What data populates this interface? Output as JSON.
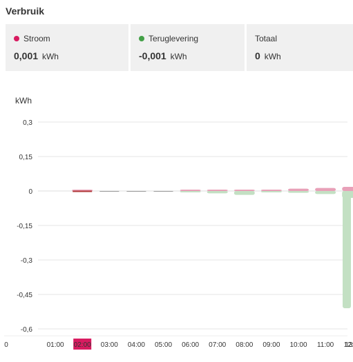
{
  "header": {
    "title": "Verbruik"
  },
  "cards": [
    {
      "label": "Stroom",
      "value": "0,001",
      "unit": "kWh",
      "dot_color": "#d81b60"
    },
    {
      "label": "Teruglevering",
      "value": "-0,001",
      "unit": "kWh",
      "dot_color": "#43a047"
    },
    {
      "label": "Totaal",
      "value": "0",
      "unit": "kWh"
    }
  ],
  "colors": {
    "stroom": "#e8a0b8",
    "teruglevering": "#c3e0c3",
    "accent": "#d81b60",
    "zero_line": "#b03a3a"
  },
  "chart_data": {
    "type": "bar",
    "ylabel": "kWh",
    "ylim": [
      -0.6,
      0.3
    ],
    "yticks": [
      {
        "value": 0.3,
        "label": "0,3"
      },
      {
        "value": 0.15,
        "label": "0,15"
      },
      {
        "value": 0,
        "label": "0"
      },
      {
        "value": -0.15,
        "label": "-0,15"
      },
      {
        "value": -0.3,
        "label": "-0,3"
      },
      {
        "value": -0.45,
        "label": "-0,45"
      },
      {
        "value": -0.6,
        "label": "-0,6"
      }
    ],
    "x_ticks": [
      "0",
      "01:00",
      "02:00",
      "03:00",
      "04:00",
      "05:00",
      "06:00",
      "07:00",
      "08:00",
      "09:00",
      "10:00",
      "11:00",
      "12:00",
      "13"
    ],
    "selected_tick": "02:00",
    "grid": true,
    "series": [
      {
        "name": "Stroom",
        "values": [
          0,
          0,
          0.001,
          0,
          0,
          0,
          0.003,
          0.006,
          0.002,
          0.003,
          0.01,
          0.013,
          0.018,
          0
        ]
      },
      {
        "name": "Teruglevering",
        "values": [
          0,
          0,
          0,
          0,
          0,
          0,
          -0.003,
          -0.01,
          -0.017,
          -0.003,
          -0.008,
          -0.013,
          -0.03,
          -0.51
        ]
      }
    ]
  }
}
